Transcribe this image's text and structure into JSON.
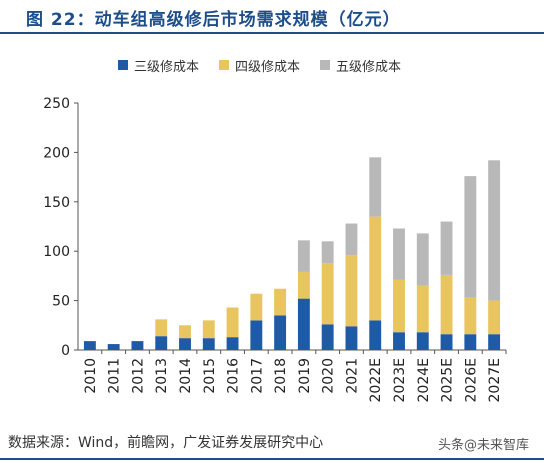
{
  "title": "图 22：动车组高级修后市场需求规模（亿元）",
  "source": "数据来源：Wind，前瞻网，广发证券发展研究中心",
  "watermark": "头条@未来智库",
  "colors": {
    "accent": "#1d4e89",
    "series": [
      "#1f5aa6",
      "#e8c55e",
      "#b8b8b8"
    ]
  },
  "chart_data": {
    "type": "bar",
    "stacked": true,
    "categories": [
      "2010",
      "2011",
      "2012",
      "2013",
      "2014",
      "2015",
      "2016",
      "2017",
      "2018",
      "2019",
      "2020",
      "2021",
      "2022E",
      "2023E",
      "2024E",
      "2025E",
      "2026E",
      "2027E"
    ],
    "series": [
      {
        "name": "三级修成本",
        "values": [
          9,
          6,
          9,
          14,
          12,
          12,
          13,
          30,
          35,
          52,
          26,
          24,
          30,
          18,
          18,
          16,
          16,
          16
        ]
      },
      {
        "name": "四级修成本",
        "values": [
          0,
          0,
          0,
          17,
          13,
          18,
          30,
          27,
          27,
          27,
          62,
          72,
          105,
          53,
          47,
          60,
          37,
          34
        ]
      },
      {
        "name": "五级修成本",
        "values": [
          0,
          0,
          0,
          0,
          0,
          0,
          0,
          0,
          0,
          32,
          22,
          32,
          60,
          52,
          53,
          54,
          123,
          142
        ]
      }
    ],
    "ylim": [
      0,
      250
    ],
    "yticks": [
      0,
      50,
      100,
      150,
      200,
      250
    ],
    "xlabel": "",
    "ylabel": "",
    "legend_position": "top",
    "grid": false
  }
}
